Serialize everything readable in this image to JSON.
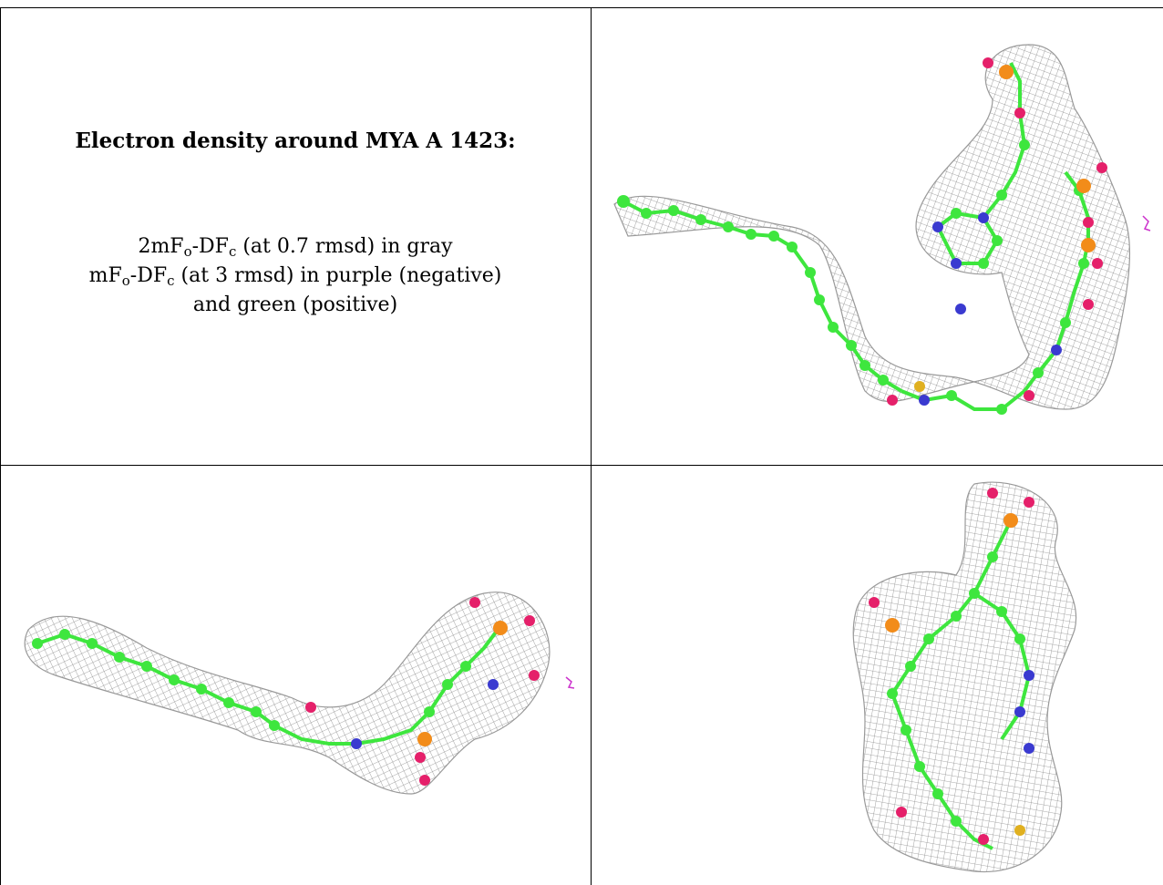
{
  "caption": {
    "title": "Electron density around MYA A 1423:",
    "line1": {
      "pre": "2mF",
      "sub1": "o",
      "mid": "-DF",
      "sub2": "c",
      "post": " (at 0.7 rmsd) in gray"
    },
    "line2": {
      "pre": "mF",
      "sub1": "o",
      "mid": "-DF",
      "sub2": "c",
      "post": " (at 3 rmsd) in purple (negative)"
    },
    "line3": "and green (positive)"
  },
  "colors": {
    "mesh": "#8c8c8c",
    "carbon": "#3ee63e",
    "oxygen": "#e5206a",
    "nitrogen": "#3a3ad0",
    "phosphorus": "#f28c1a",
    "sulfur": "#e0b020",
    "negative_density": "#cc33cc"
  }
}
